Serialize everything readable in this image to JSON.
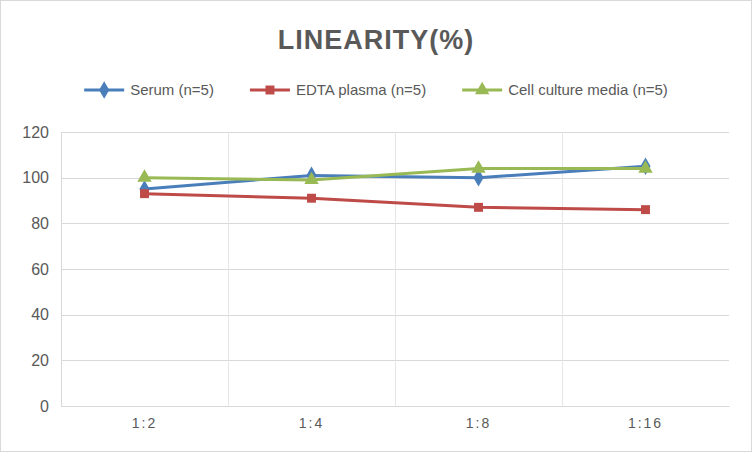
{
  "chart_data": {
    "type": "line",
    "title": "LINEARITY(%)",
    "categories": [
      "1:2",
      "1:4",
      "1:8",
      "1:16"
    ],
    "series": [
      {
        "name": "Serum (n=5)",
        "color": "#4a7ebb",
        "marker": "diamond",
        "values": [
          95,
          101,
          100,
          105
        ]
      },
      {
        "name": "EDTA plasma (n=5)",
        "color": "#be4b48",
        "marker": "square",
        "values": [
          93,
          91,
          87,
          86
        ]
      },
      {
        "name": "Cell culture media (n=5)",
        "color": "#98b954",
        "marker": "triangle",
        "values": [
          100,
          99,
          104,
          104
        ]
      }
    ],
    "ylim": [
      0,
      120
    ],
    "yticks": [
      0,
      20,
      40,
      60,
      80,
      100,
      120
    ],
    "grid": true,
    "legend": "top"
  }
}
